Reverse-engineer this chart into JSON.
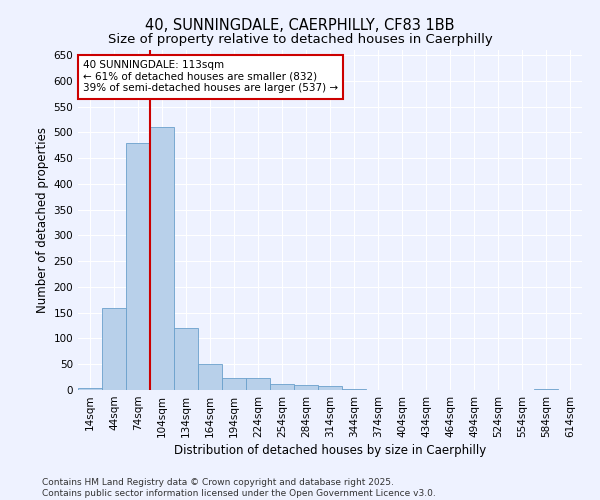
{
  "title_line1": "40, SUNNINGDALE, CAERPHILLY, CF83 1BB",
  "title_line2": "Size of property relative to detached houses in Caerphilly",
  "xlabel": "Distribution of detached houses by size in Caerphilly",
  "ylabel": "Number of detached properties",
  "bar_values": [
    3,
    160,
    480,
    510,
    120,
    50,
    23,
    23,
    12,
    10,
    7,
    1,
    0,
    0,
    0,
    0,
    0,
    0,
    0,
    2,
    0
  ],
  "bin_labels": [
    "14sqm",
    "44sqm",
    "74sqm",
    "104sqm",
    "134sqm",
    "164sqm",
    "194sqm",
    "224sqm",
    "254sqm",
    "284sqm",
    "314sqm",
    "344sqm",
    "374sqm",
    "404sqm",
    "434sqm",
    "464sqm",
    "494sqm",
    "524sqm",
    "554sqm",
    "584sqm",
    "614sqm"
  ],
  "bar_color": "#b8d0ea",
  "bar_edge_color": "#6aa0cc",
  "vline_color": "#cc0000",
  "vline_bin_index": 3,
  "annotation_text": "40 SUNNINGDALE: 113sqm\n← 61% of detached houses are smaller (832)\n39% of semi-detached houses are larger (537) →",
  "annotation_box_color": "#cc0000",
  "ylim": [
    0,
    660
  ],
  "yticks": [
    0,
    50,
    100,
    150,
    200,
    250,
    300,
    350,
    400,
    450,
    500,
    550,
    600,
    650
  ],
  "bg_color": "#eef2ff",
  "footer_text": "Contains HM Land Registry data © Crown copyright and database right 2025.\nContains public sector information licensed under the Open Government Licence v3.0.",
  "title_fontsize": 10.5,
  "subtitle_fontsize": 9.5,
  "axis_label_fontsize": 8.5,
  "tick_fontsize": 7.5,
  "annotation_fontsize": 7.5,
  "footer_fontsize": 6.5
}
